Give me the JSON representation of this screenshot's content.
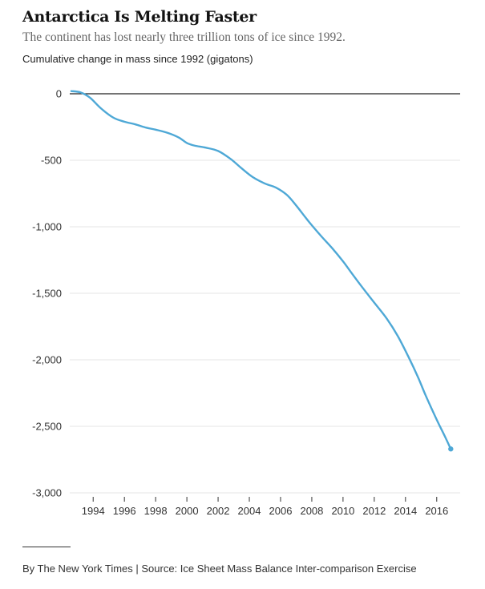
{
  "chart_data": {
    "type": "line",
    "title": "Antarctica Is Melting Faster",
    "subtitle": "The continent has lost nearly three trillion tons of ice since 1992.",
    "ylabel": "Cumulative change in mass since 1992 (gigatons)",
    "xlabel": "",
    "xlim": [
      1992.5,
      2017.5
    ],
    "ylim": [
      -3000,
      0
    ],
    "y_ticks": [
      0,
      -500,
      -1000,
      -1500,
      -2000,
      -2500,
      -3000
    ],
    "y_tick_labels": [
      "0",
      "-500",
      "-1,000",
      "-1,500",
      "-2,000",
      "-2,500",
      "-3,000"
    ],
    "x_ticks": [
      1994,
      1996,
      1998,
      2000,
      2002,
      2004,
      2006,
      2008,
      2010,
      2012,
      2014,
      2016
    ],
    "x_tick_labels": [
      "1994",
      "1996",
      "1998",
      "2000",
      "2002",
      "2004",
      "2006",
      "2008",
      "2010",
      "2012",
      "2014",
      "2016"
    ],
    "grid": true,
    "line_color": "#4ea8d6",
    "series": [
      {
        "x": [
          1992.6,
          1993.2,
          1993.8,
          1994.5,
          1995.3,
          1996.0,
          1996.7,
          1997.4,
          1998.0,
          1998.8,
          1999.5,
          2000.0,
          2000.5,
          2001.2,
          2002.0,
          2002.8,
          2003.5,
          2004.2,
          2005.0,
          2005.7,
          2006.4,
          2007.0,
          2007.8,
          2008.6,
          2009.3,
          2010.0,
          2010.5,
          2011.2,
          2012.0,
          2012.8,
          2013.5,
          2014.2,
          2014.8,
          2015.3,
          2016.0,
          2016.5,
          2016.9
        ],
        "y": [
          20,
          10,
          -30,
          -110,
          -180,
          -210,
          -230,
          -255,
          -270,
          -295,
          -330,
          -370,
          -390,
          -405,
          -430,
          -490,
          -560,
          -625,
          -675,
          -705,
          -760,
          -840,
          -960,
          -1070,
          -1160,
          -1260,
          -1340,
          -1450,
          -1570,
          -1690,
          -1820,
          -1980,
          -2130,
          -2270,
          -2450,
          -2570,
          -2670
        ]
      }
    ]
  },
  "footer": {
    "credit": "By The New York Times | Source: Ice Sheet Mass Balance Inter-comparison Exercise"
  }
}
